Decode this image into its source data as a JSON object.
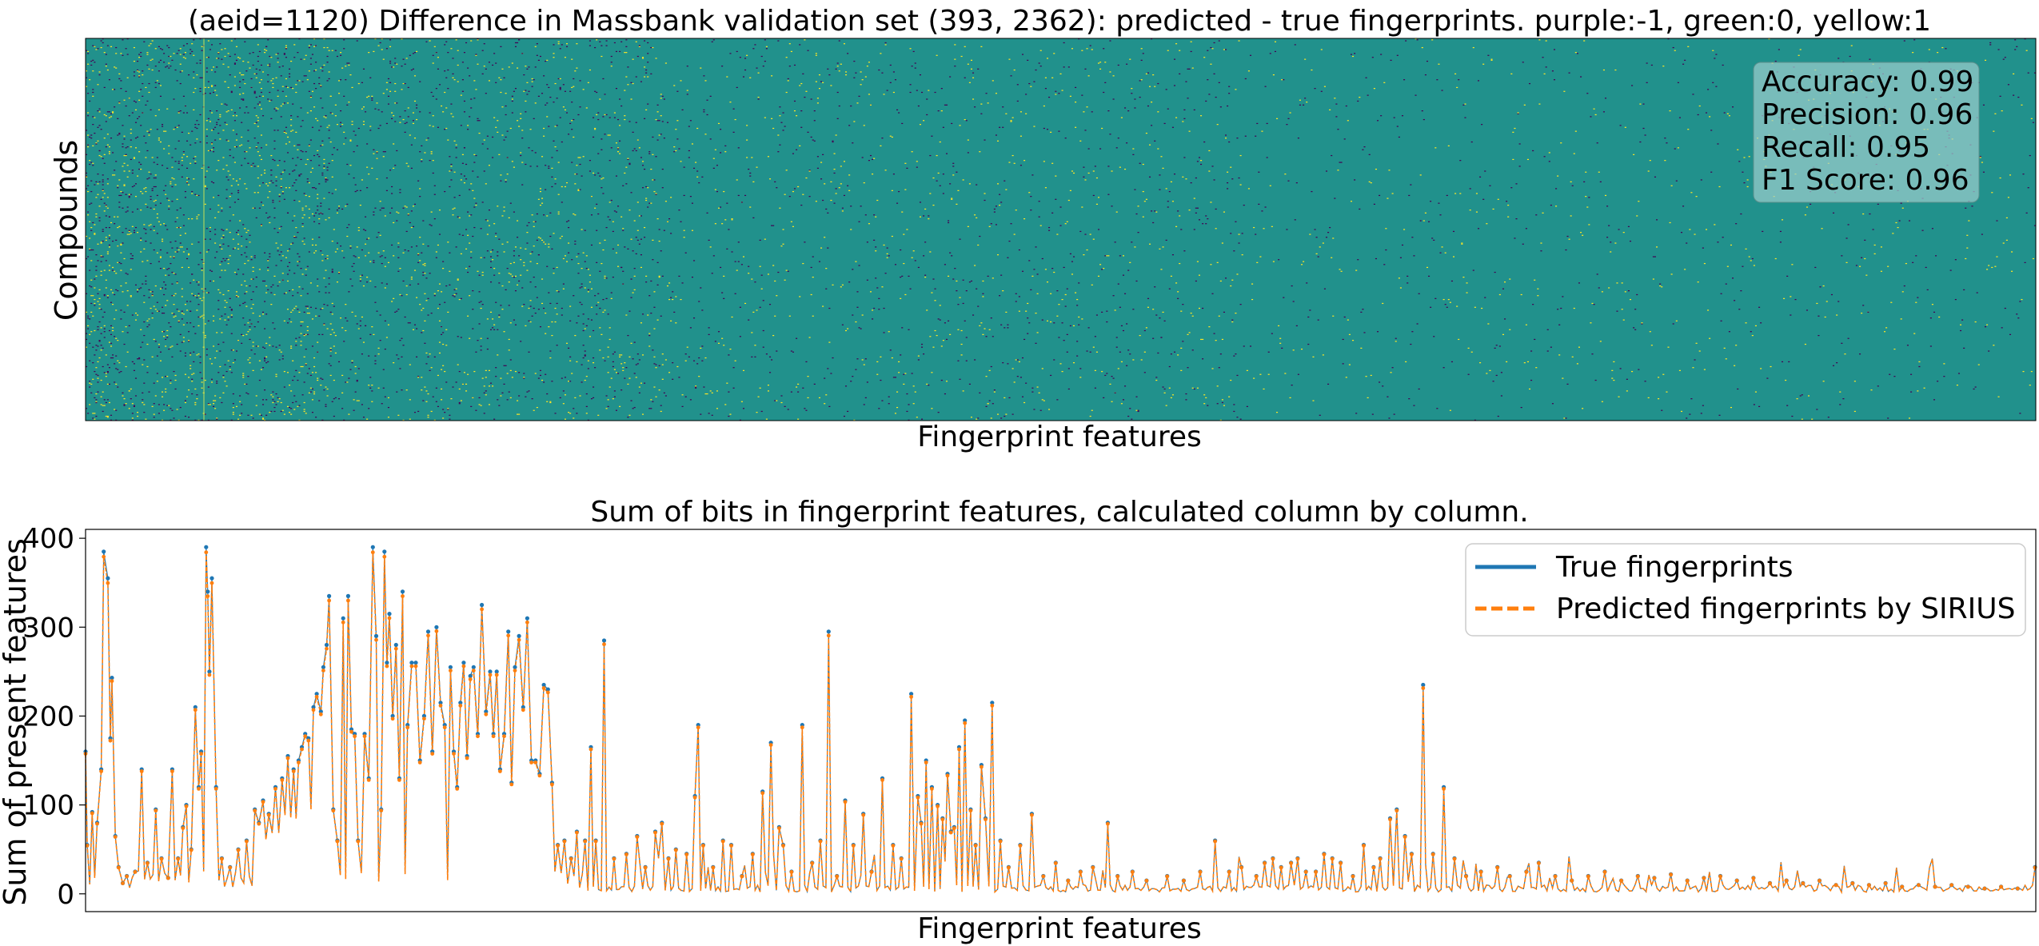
{
  "chart_data": [
    {
      "type": "heatmap",
      "title": "(aeid=1120) Difference in Massbank validation set (393, 2362): predicted - true fingerprints. purple:-1, green:0, yellow:1",
      "xlabel": "Fingerprint features",
      "ylabel": "Compounds",
      "shape": [
        393,
        2362
      ],
      "value_levels": [
        -1,
        0,
        1
      ],
      "colors": {
        "-1": "#440154",
        "0": "#21918c",
        "1": "#fde725"
      },
      "xticks": "none",
      "yticks": "none",
      "metrics_box": {
        "lines": [
          "Accuracy: 0.99",
          "Precision: 0.96",
          "Recall: 0.95",
          "F1 Score: 0.96"
        ],
        "placement": "top-right",
        "values": {
          "accuracy": 0.99,
          "precision": 0.96,
          "recall": 0.95,
          "f1": 0.96
        }
      }
    },
    {
      "type": "line",
      "title": "Sum of bits in fingerprint features, calculated column by column.",
      "xlabel": "Fingerprint features",
      "ylabel": "Sum of present features",
      "xlim": [
        0,
        2362
      ],
      "ylim": [
        -20,
        410
      ],
      "yticks": [
        0,
        100,
        200,
        300,
        400
      ],
      "xticks": "none",
      "legend_placement": "top-right",
      "peaks": [
        [
          0,
          160
        ],
        [
          2,
          55
        ],
        [
          8,
          92
        ],
        [
          14,
          80
        ],
        [
          19,
          140
        ],
        [
          22,
          385
        ],
        [
          27,
          355
        ],
        [
          30,
          175
        ],
        [
          32,
          243
        ],
        [
          36,
          65
        ],
        [
          40,
          30
        ],
        [
          45,
          12
        ],
        [
          50,
          20
        ],
        [
          60,
          25
        ],
        [
          68,
          140
        ],
        [
          75,
          35
        ],
        [
          85,
          95
        ],
        [
          92,
          40
        ],
        [
          100,
          18
        ],
        [
          105,
          140
        ],
        [
          112,
          40
        ],
        [
          118,
          75
        ],
        [
          122,
          100
        ],
        [
          128,
          50
        ],
        [
          133,
          210
        ],
        [
          137,
          120
        ],
        [
          140,
          160
        ],
        [
          146,
          390
        ],
        [
          148,
          340
        ],
        [
          150,
          250
        ],
        [
          153,
          355
        ],
        [
          158,
          120
        ],
        [
          165,
          40
        ],
        [
          175,
          30
        ],
        [
          185,
          50
        ],
        [
          195,
          60
        ],
        [
          205,
          95
        ],
        [
          210,
          80
        ],
        [
          215,
          105
        ],
        [
          222,
          90
        ],
        [
          230,
          120
        ],
        [
          238,
          130
        ],
        [
          245,
          155
        ],
        [
          252,
          140
        ],
        [
          258,
          150
        ],
        [
          262,
          165
        ],
        [
          266,
          180
        ],
        [
          270,
          175
        ],
        [
          276,
          210
        ],
        [
          280,
          225
        ],
        [
          285,
          205
        ],
        [
          288,
          255
        ],
        [
          292,
          280
        ],
        [
          295,
          335
        ],
        [
          300,
          95
        ],
        [
          305,
          60
        ],
        [
          312,
          310
        ],
        [
          318,
          335
        ],
        [
          322,
          185
        ],
        [
          326,
          180
        ],
        [
          330,
          60
        ],
        [
          338,
          180
        ],
        [
          343,
          130
        ],
        [
          348,
          390
        ],
        [
          352,
          290
        ],
        [
          358,
          95
        ],
        [
          362,
          385
        ],
        [
          365,
          260
        ],
        [
          368,
          315
        ],
        [
          372,
          200
        ],
        [
          376,
          280
        ],
        [
          380,
          130
        ],
        [
          384,
          340
        ],
        [
          390,
          190
        ],
        [
          395,
          260
        ],
        [
          400,
          260
        ],
        [
          405,
          150
        ],
        [
          410,
          200
        ],
        [
          415,
          295
        ],
        [
          420,
          160
        ],
        [
          425,
          300
        ],
        [
          430,
          215
        ],
        [
          435,
          190
        ],
        [
          442,
          255
        ],
        [
          446,
          160
        ],
        [
          450,
          120
        ],
        [
          454,
          215
        ],
        [
          458,
          260
        ],
        [
          462,
          155
        ],
        [
          466,
          245
        ],
        [
          470,
          255
        ],
        [
          475,
          180
        ],
        [
          480,
          325
        ],
        [
          485,
          205
        ],
        [
          490,
          250
        ],
        [
          494,
          180
        ],
        [
          498,
          250
        ],
        [
          502,
          140
        ],
        [
          507,
          180
        ],
        [
          512,
          295
        ],
        [
          516,
          125
        ],
        [
          520,
          255
        ],
        [
          525,
          290
        ],
        [
          530,
          210
        ],
        [
          535,
          310
        ],
        [
          540,
          150
        ],
        [
          545,
          150
        ],
        [
          550,
          135
        ],
        [
          555,
          235
        ],
        [
          560,
          230
        ],
        [
          565,
          125
        ],
        [
          572,
          55
        ],
        [
          580,
          60
        ],
        [
          588,
          40
        ],
        [
          595,
          70
        ],
        [
          605,
          60
        ],
        [
          612,
          165
        ],
        [
          618,
          60
        ],
        [
          628,
          285
        ],
        [
          640,
          40
        ],
        [
          655,
          45
        ],
        [
          668,
          65
        ],
        [
          678,
          30
        ],
        [
          690,
          70
        ],
        [
          698,
          80
        ],
        [
          706,
          40
        ],
        [
          715,
          50
        ],
        [
          728,
          45
        ],
        [
          738,
          110
        ],
        [
          742,
          190
        ],
        [
          748,
          55
        ],
        [
          760,
          30
        ],
        [
          772,
          60
        ],
        [
          782,
          55
        ],
        [
          795,
          20
        ],
        [
          808,
          45
        ],
        [
          820,
          115
        ],
        [
          830,
          170
        ],
        [
          840,
          75
        ],
        [
          845,
          55
        ],
        [
          855,
          25
        ],
        [
          868,
          190
        ],
        [
          880,
          35
        ],
        [
          890,
          60
        ],
        [
          900,
          295
        ],
        [
          910,
          20
        ],
        [
          920,
          105
        ],
        [
          930,
          55
        ],
        [
          942,
          90
        ],
        [
          952,
          25
        ],
        [
          965,
          130
        ],
        [
          978,
          55
        ],
        [
          988,
          40
        ],
        [
          1000,
          225
        ],
        [
          1008,
          110
        ],
        [
          1012,
          80
        ],
        [
          1018,
          150
        ],
        [
          1025,
          120
        ],
        [
          1032,
          100
        ],
        [
          1038,
          85
        ],
        [
          1044,
          135
        ],
        [
          1048,
          70
        ],
        [
          1052,
          75
        ],
        [
          1058,
          165
        ],
        [
          1065,
          195
        ],
        [
          1072,
          95
        ],
        [
          1078,
          55
        ],
        [
          1085,
          145
        ],
        [
          1090,
          85
        ],
        [
          1098,
          215
        ],
        [
          1108,
          60
        ],
        [
          1118,
          30
        ],
        [
          1132,
          55
        ],
        [
          1146,
          90
        ],
        [
          1160,
          20
        ],
        [
          1175,
          35
        ],
        [
          1190,
          15
        ],
        [
          1205,
          25
        ],
        [
          1220,
          30
        ],
        [
          1238,
          80
        ],
        [
          1250,
          20
        ],
        [
          1268,
          25
        ],
        [
          1285,
          15
        ],
        [
          1310,
          20
        ],
        [
          1330,
          15
        ],
        [
          1350,
          25
        ],
        [
          1368,
          60
        ],
        [
          1385,
          25
        ],
        [
          1400,
          30
        ],
        [
          1418,
          20
        ],
        [
          1428,
          35
        ],
        [
          1438,
          40
        ],
        [
          1448,
          30
        ],
        [
          1460,
          35
        ],
        [
          1468,
          40
        ],
        [
          1478,
          25
        ],
        [
          1490,
          25
        ],
        [
          1500,
          45
        ],
        [
          1510,
          40
        ],
        [
          1520,
          35
        ],
        [
          1535,
          20
        ],
        [
          1548,
          55
        ],
        [
          1560,
          30
        ],
        [
          1568,
          40
        ],
        [
          1580,
          85
        ],
        [
          1588,
          95
        ],
        [
          1598,
          65
        ],
        [
          1606,
          45
        ],
        [
          1620,
          235
        ],
        [
          1632,
          45
        ],
        [
          1645,
          120
        ],
        [
          1658,
          40
        ],
        [
          1672,
          20
        ],
        [
          1690,
          25
        ],
        [
          1710,
          30
        ],
        [
          1725,
          20
        ],
        [
          1745,
          25
        ],
        [
          1760,
          35
        ],
        [
          1780,
          20
        ],
        [
          1800,
          15
        ],
        [
          1820,
          20
        ],
        [
          1840,
          25
        ],
        [
          1860,
          15
        ],
        [
          1880,
          20
        ],
        [
          1900,
          18
        ],
        [
          1920,
          22
        ],
        [
          1940,
          15
        ],
        [
          1960,
          18
        ],
        [
          1980,
          20
        ],
        [
          2000,
          15
        ],
        [
          2020,
          18
        ],
        [
          2040,
          12
        ],
        [
          2060,
          15
        ],
        [
          2080,
          12
        ],
        [
          2100,
          15
        ],
        [
          2120,
          10
        ],
        [
          2140,
          12
        ],
        [
          2160,
          10
        ],
        [
          2180,
          12
        ],
        [
          2200,
          8
        ],
        [
          2220,
          10
        ],
        [
          2240,
          8
        ],
        [
          2260,
          10
        ],
        [
          2280,
          8
        ],
        [
          2300,
          6
        ],
        [
          2320,
          8
        ],
        [
          2340,
          6
        ],
        [
          2361,
          30
        ]
      ],
      "series": [
        {
          "name": "True fingerprints",
          "color": "#1f77b4",
          "style": "solid"
        },
        {
          "name": "Predicted fingerprints by SIRIUS",
          "color": "#ff7f0e",
          "style": "dashed"
        }
      ]
    }
  ]
}
